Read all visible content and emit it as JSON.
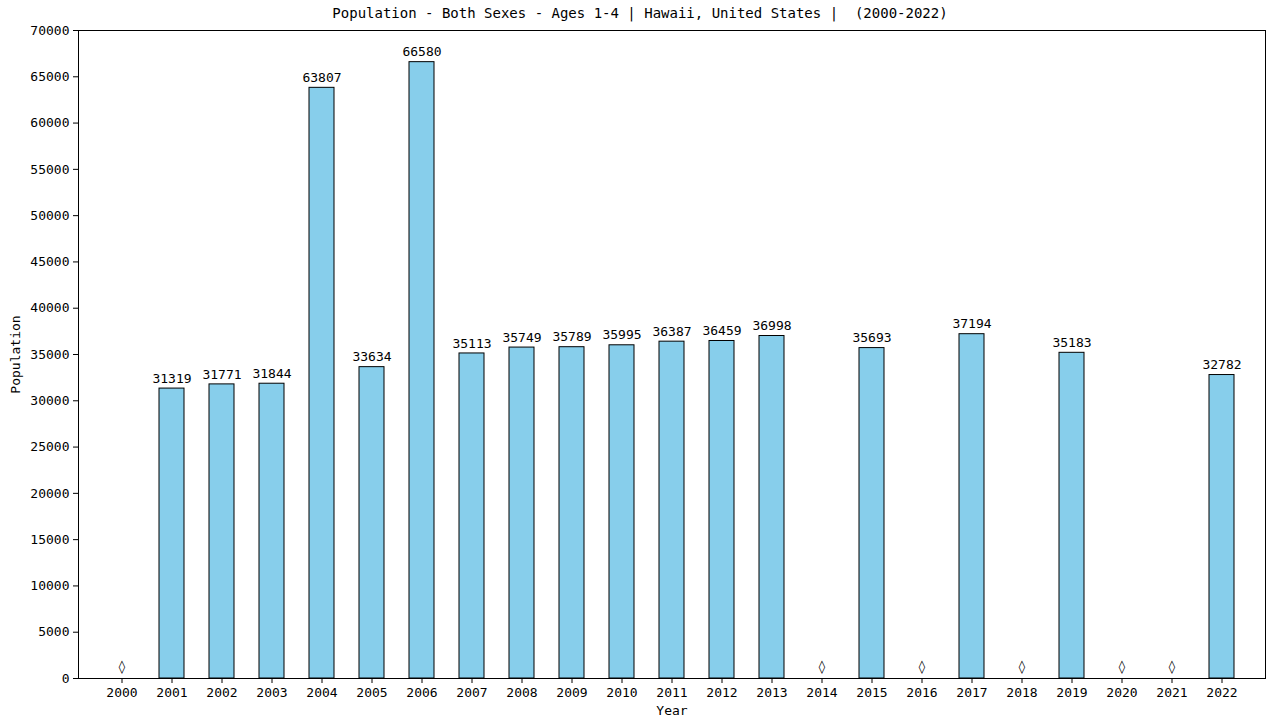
{
  "chart_data": {
    "type": "bar",
    "title": "Population - Both Sexes - Ages 1-4 | Hawaii, United States |  (2000-2022)",
    "x_label": "Year",
    "y_label": "Population",
    "categories": [
      "2000",
      "2001",
      "2002",
      "2003",
      "2004",
      "2005",
      "2006",
      "2007",
      "2008",
      "2009",
      "2010",
      "2011",
      "2012",
      "2013",
      "2014",
      "2015",
      "2016",
      "2017",
      "2018",
      "2019",
      "2020",
      "2021",
      "2022"
    ],
    "values": [
      null,
      31319,
      31771,
      31844,
      63807,
      33634,
      66580,
      35113,
      35749,
      35789,
      35995,
      36387,
      36459,
      36998,
      null,
      35693,
      null,
      37194,
      null,
      35183,
      null,
      null,
      32782
    ],
    "value_labels": [
      "◊",
      "31319",
      "31771",
      "31844",
      "63807",
      "33634",
      "66580",
      "35113",
      "35749",
      "35789",
      "35995",
      "36387",
      "36459",
      "36998",
      "◊",
      "35693",
      "◊",
      "37194",
      "◊",
      "35183",
      "◊",
      "◊",
      "32782"
    ],
    "data_labels": true,
    "color": "#87ceeb",
    "ylim": [
      0,
      70000
    ],
    "yticks": [
      0,
      5000,
      10000,
      15000,
      20000,
      25000,
      30000,
      35000,
      40000,
      45000,
      50000,
      55000,
      60000,
      65000,
      70000
    ],
    "grid": false
  }
}
